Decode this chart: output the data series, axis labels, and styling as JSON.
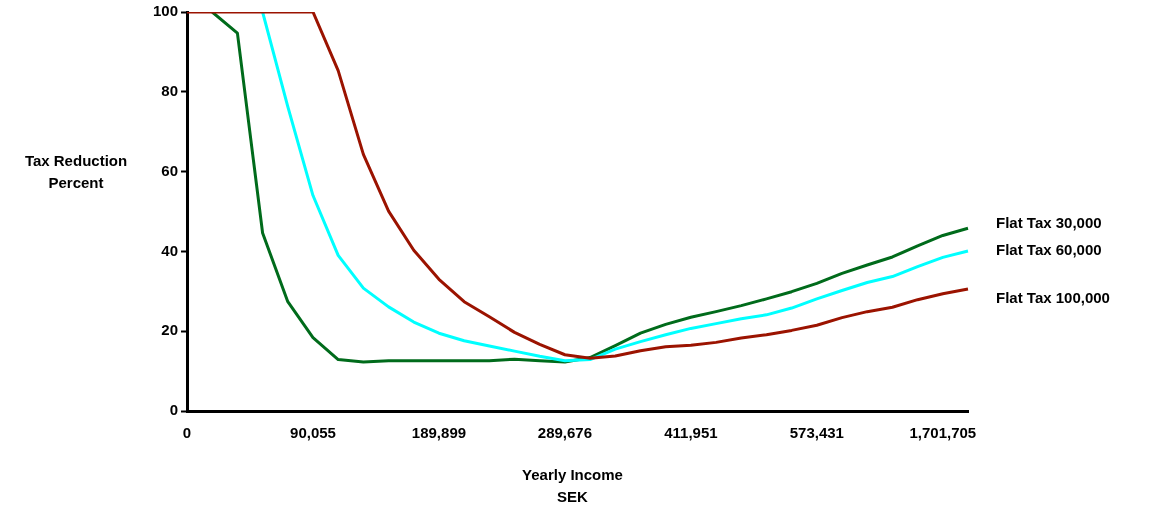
{
  "chart_data": {
    "type": "line",
    "xlabel": "Yearly Income\nSEK",
    "ylabel": "Tax Reduction\nPercent",
    "categories": [
      "0",
      null,
      null,
      null,
      null,
      "90,055",
      null,
      null,
      null,
      null,
      "189,899",
      null,
      null,
      null,
      null,
      "289,676",
      null,
      null,
      null,
      null,
      "411,951",
      null,
      null,
      null,
      null,
      "573,431",
      null,
      null,
      null,
      null,
      "1,701,705",
      null
    ],
    "series": [
      {
        "name": "Flat Tax 30,000",
        "color": "#006b1b",
        "values": [
          null,
          100,
          94.7,
          44.6,
          27.4,
          18.4,
          12.9,
          12.3,
          12.6,
          12.6,
          12.6,
          12.6,
          12.6,
          13.0,
          12.6,
          12.3,
          13.4,
          16.4,
          19.5,
          21.7,
          23.5,
          24.9,
          26.4,
          28.1,
          29.9,
          32.0,
          34.5,
          36.6,
          38.6,
          41.4,
          44.0,
          45.8
        ]
      },
      {
        "name": "Flat Tax 60,000",
        "color": "#00ffff",
        "values": [
          null,
          null,
          null,
          100,
          76.3,
          54.0,
          39.0,
          30.8,
          26.1,
          22.3,
          19.5,
          17.6,
          16.3,
          15.0,
          13.7,
          12.6,
          12.9,
          15.5,
          17.4,
          19.1,
          20.7,
          21.9,
          23.1,
          24.1,
          25.8,
          28.1,
          30.2,
          32.2,
          33.7,
          36.2,
          38.5,
          40.1
        ]
      },
      {
        "name": "Flat Tax 100,000",
        "color": "#9b1300",
        "values": [
          100,
          100,
          100,
          100,
          100,
          100,
          85.3,
          64.3,
          50.1,
          40.3,
          33.0,
          27.4,
          23.6,
          19.7,
          16.7,
          14.1,
          13.2,
          13.8,
          15.1,
          16.1,
          16.5,
          17.2,
          18.3,
          19.1,
          20.2,
          21.5,
          23.4,
          24.9,
          26.0,
          27.9,
          29.4,
          30.6
        ]
      }
    ],
    "ylim": [
      0,
      100
    ],
    "yticks": [
      0,
      20,
      40,
      60,
      80,
      100
    ],
    "grid": false,
    "marker": "none",
    "line_style": "solid"
  }
}
